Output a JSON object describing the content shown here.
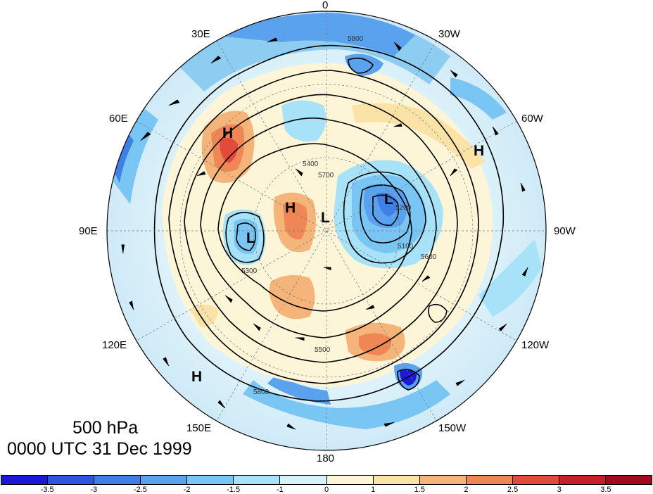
{
  "map": {
    "title_level": "500 hPa",
    "title_time": "0000 UTC 31 Dec 1999",
    "projection": "north-polar-stereographic",
    "longitude_labels": [
      "0",
      "30W",
      "60W",
      "90W",
      "120W",
      "150W",
      "180",
      "150E",
      "120E",
      "90E",
      "60E",
      "30E"
    ],
    "pressure_systems": [
      {
        "type": "H",
        "location": "northern Africa / Sahara"
      },
      {
        "type": "L",
        "location": "northern Canada / Hudson Bay"
      },
      {
        "type": "H",
        "location": "North Atlantic"
      },
      {
        "type": "H",
        "location": "central Siberia"
      },
      {
        "type": "L",
        "location": "Arctic Ocean near pole"
      },
      {
        "type": "L",
        "location": "western Siberia"
      },
      {
        "type": "H",
        "location": "western Pacific"
      }
    ],
    "contour_labels": [
      "5800",
      "5800",
      "5700",
      "5600",
      "5500",
      "5400",
      "5300",
      "5200",
      "5100"
    ],
    "contour_levels": [
      5100,
      5200,
      5300,
      5400,
      5500,
      5600,
      5700,
      5800
    ]
  },
  "colorbar": {
    "tick_labels": [
      "-3.5",
      "-3",
      "-2.5",
      "-2",
      "-1.5",
      "-1",
      "0",
      "1",
      "1.5",
      "2",
      "2.5",
      "3",
      "3.5"
    ],
    "colors": [
      "#1a1ad6",
      "#2f55e0",
      "#3f7fe6",
      "#5aa2ee",
      "#79c6f4",
      "#a8e2f8",
      "#d6f2fa",
      "#fdf5d8",
      "#fbe3a8",
      "#f5b57a",
      "#ef8655",
      "#e24a3c",
      "#c81e2a",
      "#a30a1e"
    ]
  }
}
